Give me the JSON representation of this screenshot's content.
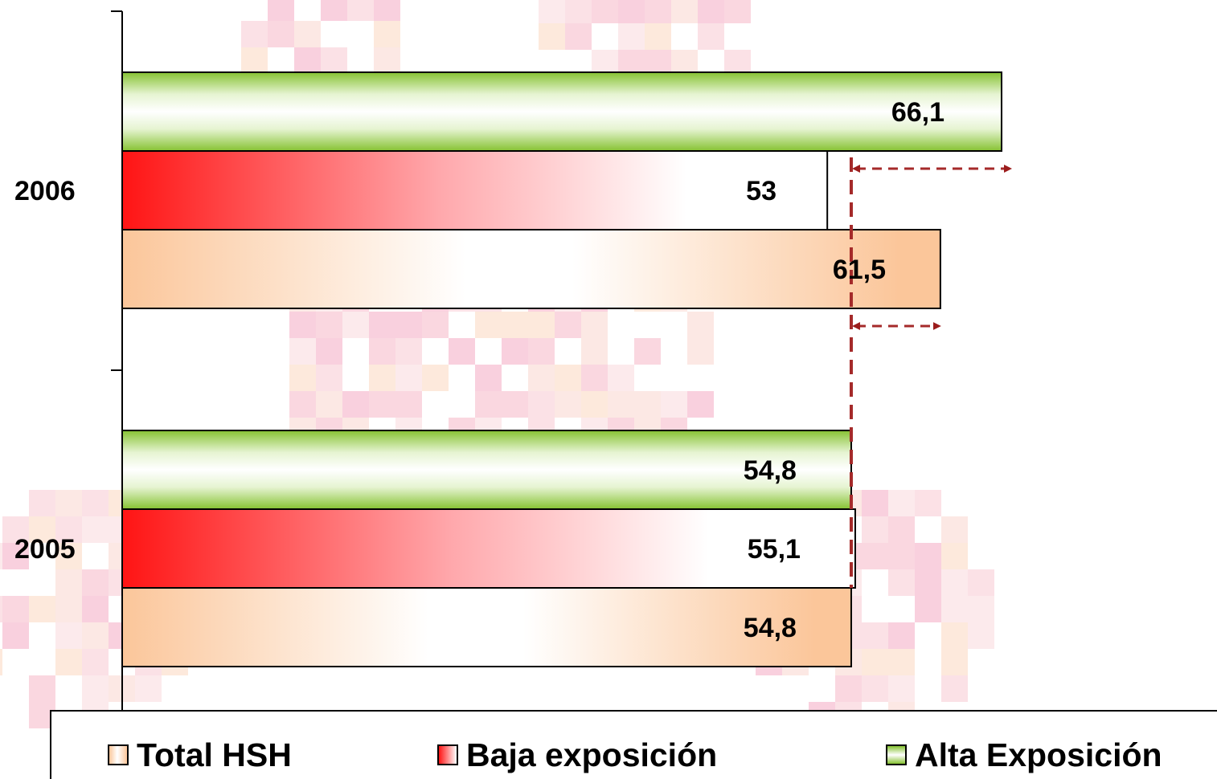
{
  "chart_data": {
    "type": "bar",
    "orientation": "horizontal",
    "categories": [
      "2006",
      "2005"
    ],
    "series": [
      {
        "name": "Alta Exposición",
        "values": [
          66.1,
          54.8
        ],
        "labels": [
          "66,1",
          "54,8"
        ],
        "color": "#8fc43f"
      },
      {
        "name": "Baja exposición",
        "values": [
          53,
          55.1
        ],
        "labels": [
          "53",
          "55,1"
        ],
        "color": "#ff1a1a"
      },
      {
        "name": "Total HSH",
        "values": [
          61.5,
          54.8
        ],
        "labels": [
          "61,5",
          "54,8"
        ],
        "color": "#fbc69a"
      }
    ],
    "legend_order": [
      "Total HSH",
      "Baja exposición",
      "Alta Exposición"
    ],
    "legend_position": "bottom",
    "xlim": [
      0,
      91.5
    ],
    "grid": false,
    "title": "",
    "xlabel": "",
    "ylabel": "",
    "annotation_color": "#a52a2a"
  }
}
